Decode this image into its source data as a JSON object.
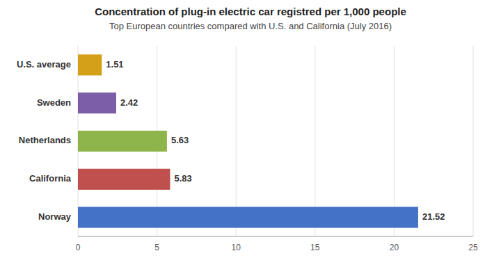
{
  "chart_data": {
    "type": "bar",
    "orientation": "horizontal",
    "title": "Concentration of plug-in electric car registred per 1,000 people",
    "subtitle": "Top European countries compared with U.S. and California (July 2016)",
    "categories": [
      "Norway",
      "California",
      "Netherlands",
      "Sweden",
      "U.S. average"
    ],
    "values": [
      21.52,
      5.83,
      5.63,
      2.42,
      1.51
    ],
    "colors": [
      "#4472C4",
      "#C0504D",
      "#8DB54B",
      "#7B5EA7",
      "#D4A017"
    ],
    "xlim": [
      0,
      25
    ],
    "xticks": [
      0,
      5,
      10,
      15,
      20,
      25
    ],
    "grid": true,
    "data_labels": true
  }
}
